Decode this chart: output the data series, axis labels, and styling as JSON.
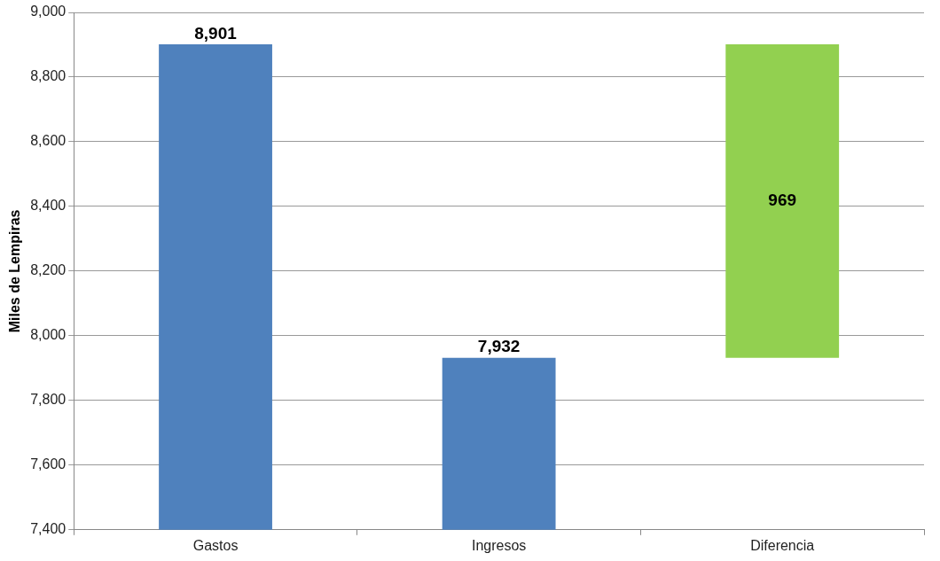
{
  "chart_data": {
    "type": "bar",
    "ylabel": "Miles de Lempiras",
    "categories": [
      "Gastos",
      "Ingresos",
      "Diferencia"
    ],
    "values": [
      8901,
      7932,
      969
    ],
    "value_labels": [
      "8,901",
      "7,932",
      "969"
    ],
    "base": [
      0,
      0,
      7932
    ],
    "colors": [
      "#4f81bd",
      "#4f81bd",
      "#92d050"
    ],
    "ylim": [
      7400,
      9000
    ],
    "yticks": [
      {
        "value": 7400,
        "label": "7,400"
      },
      {
        "value": 7600,
        "label": "7,600"
      },
      {
        "value": 7800,
        "label": "7,800"
      },
      {
        "value": 8000,
        "label": "8,000"
      },
      {
        "value": 8200,
        "label": "8,200"
      },
      {
        "value": 8400,
        "label": "8,400"
      },
      {
        "value": 8600,
        "label": "8,600"
      },
      {
        "value": 8800,
        "label": "8,800"
      },
      {
        "value": 9000,
        "label": "9,000"
      }
    ],
    "grid": "y"
  }
}
